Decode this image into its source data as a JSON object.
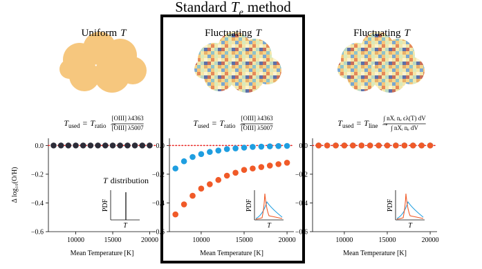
{
  "title": {
    "text": "Standard",
    "symbol": "T",
    "subscript": "e",
    "suffix": "method"
  },
  "chart_data": [
    {
      "type": "scatter",
      "header": "Uniform",
      "header_symbol": "T",
      "formula": {
        "lhs": "T",
        "lhs_sub": "used",
        "eq": "=",
        "rhs": "T",
        "rhs_sub": "ratio",
        "arrow": "→",
        "numerator": "[OIII] λ4363",
        "denominator": "[OIII] λ5007"
      },
      "x": [
        7000,
        8000,
        9000,
        10000,
        11000,
        12000,
        13000,
        14000,
        15000,
        16000,
        17000,
        18000,
        19000,
        20000
      ],
      "series": [
        {
          "color": "#2c2c38",
          "values": [
            0,
            0,
            0,
            0,
            0,
            0,
            0,
            0,
            0,
            0,
            0,
            0,
            0,
            0
          ]
        }
      ],
      "reference_line": {
        "value": 0,
        "color": "#e8221f"
      },
      "xlim": [
        6300,
        20800
      ],
      "xticks": [
        10000,
        15000,
        20000
      ],
      "ylim": [
        -0.6,
        0.05
      ],
      "yticks": [
        {
          "value": 0,
          "label": "0.0"
        },
        {
          "value": -0.2,
          "label": "−0.2"
        },
        {
          "value": -0.4,
          "label": "−0.4"
        },
        {
          "value": -0.6,
          "label": "−0.6"
        }
      ],
      "xlabel": "Mean Temperature [K]",
      "ylabel": "Δ log₁₀(O/H)",
      "inset": {
        "title_symbol": "T",
        "title": "distribution",
        "ylabel": "PDF",
        "xlabel": "T"
      }
    },
    {
      "type": "scatter",
      "header": "Fluctuating",
      "header_symbol": "T",
      "formula": {
        "lhs": "T",
        "lhs_sub": "used",
        "eq": "=",
        "rhs": "T",
        "rhs_sub": "ratio",
        "arrow": "→",
        "numerator": "[OIII] λ4363",
        "denominator": "[OIII] λ5007"
      },
      "x": [
        7000,
        8000,
        9000,
        10000,
        11000,
        12000,
        13000,
        14000,
        15000,
        16000,
        17000,
        18000,
        19000,
        20000
      ],
      "series": [
        {
          "color": "#1f9ee0",
          "values": [
            -0.16,
            -0.11,
            -0.08,
            -0.06,
            -0.045,
            -0.035,
            -0.025,
            -0.02,
            -0.015,
            -0.01,
            -0.008,
            -0.006,
            -0.004,
            -0.003
          ]
        },
        {
          "color": "#f05a28",
          "values": [
            -0.48,
            -0.41,
            -0.35,
            -0.3,
            -0.27,
            -0.24,
            -0.21,
            -0.19,
            -0.17,
            -0.16,
            -0.15,
            -0.14,
            -0.13,
            -0.12
          ]
        }
      ],
      "reference_line": {
        "value": 0,
        "color": "#e8221f"
      },
      "xlim": [
        6300,
        20800
      ],
      "xticks": [
        10000,
        15000,
        20000
      ],
      "ylim": [
        -0.6,
        0.05
      ],
      "yticks": [
        {
          "value": 0,
          "label": "0.0"
        },
        {
          "value": -0.2,
          "label": "−0.2"
        },
        {
          "value": -0.4,
          "label": "−0.4"
        },
        {
          "value": -0.6,
          "label": "−0.6"
        }
      ],
      "xlabel": "Mean Temperature [K]",
      "inset": {
        "ylabel": "PDF",
        "xlabel": "T"
      }
    },
    {
      "type": "scatter",
      "header": "Fluctuating",
      "header_symbol": "T",
      "formula": {
        "lhs": "T",
        "lhs_sub": "used",
        "eq": "=",
        "rhs": "T",
        "rhs_sub": "line",
        "arrow": "→",
        "numerator": "∫ nXᵢ nₑ ϵλ(T) dV",
        "denominator": "∫ nXᵢ nₑ dV"
      },
      "x": [
        7000,
        8000,
        9000,
        10000,
        11000,
        12000,
        13000,
        14000,
        15000,
        16000,
        17000,
        18000,
        19000,
        20000
      ],
      "series": [
        {
          "color": "#1f9ee0",
          "values": [
            0,
            0,
            0,
            0,
            0,
            0,
            0,
            0,
            0,
            0,
            0,
            0,
            0,
            0
          ]
        },
        {
          "color": "#f05a28",
          "values": [
            0,
            0,
            0,
            0,
            0,
            0,
            0,
            0,
            0,
            0,
            0,
            0,
            0,
            0
          ]
        }
      ],
      "reference_line": {
        "value": 0,
        "color": "#e8221f"
      },
      "xlim": [
        6300,
        20800
      ],
      "xticks": [
        10000,
        15000,
        20000
      ],
      "ylim": [
        -0.6,
        0.05
      ],
      "yticks": [
        {
          "value": 0,
          "label": "0.0"
        },
        {
          "value": -0.2,
          "label": "−0.2"
        },
        {
          "value": -0.4,
          "label": "−0.4"
        },
        {
          "value": -0.6,
          "label": "−0.6"
        }
      ],
      "xlabel": "Mean Temperature [K]",
      "inset": {
        "ylabel": "PDF",
        "xlabel": "T"
      }
    }
  ]
}
